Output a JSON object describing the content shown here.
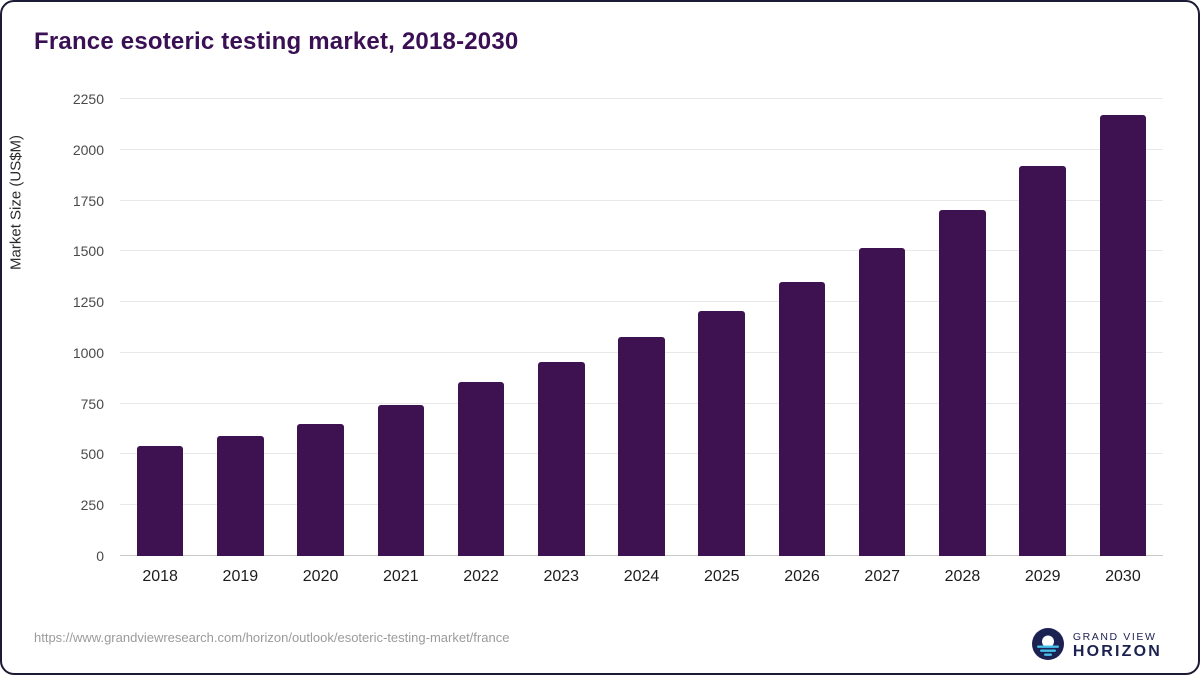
{
  "title": "France esoteric testing market, 2018-2030",
  "chart_data": {
    "type": "bar",
    "categories": [
      "2018",
      "2019",
      "2020",
      "2021",
      "2022",
      "2023",
      "2024",
      "2025",
      "2026",
      "2027",
      "2028",
      "2029",
      "2030"
    ],
    "values": [
      540,
      590,
      648,
      745,
      855,
      957,
      1078,
      1205,
      1350,
      1515,
      1705,
      1920,
      2170
    ],
    "title": "France esoteric testing market, 2018-2030",
    "xlabel": "",
    "ylabel": "Market Size (US$M)",
    "ylim": [
      0,
      2250
    ],
    "yticks": [
      0,
      250,
      500,
      750,
      1000,
      1250,
      1500,
      1750,
      2000,
      2250
    ],
    "bar_color": "#3e1151",
    "grid": true,
    "legend": false
  },
  "footer": {
    "source_url": "https://www.grandviewresearch.com/horizon/outlook/esoteric-testing-market/france",
    "logo_top": "GRAND VIEW",
    "logo_bottom": "HORIZON"
  },
  "colors": {
    "title": "#3a0f54",
    "bar": "#3e1151",
    "gridline": "#e8e8e8",
    "logo_navy": "#1b2150",
    "logo_blue": "#45c0ea"
  }
}
